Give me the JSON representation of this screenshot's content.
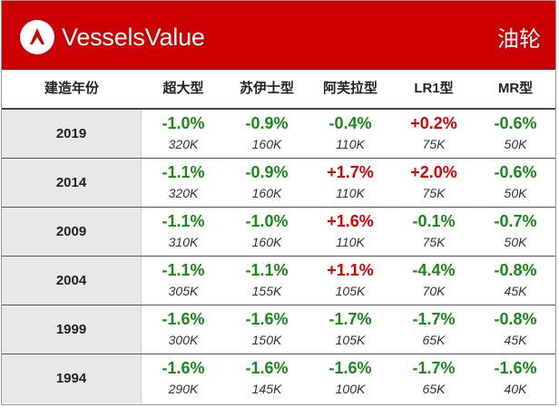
{
  "banner": {
    "brand": "VesselsValue",
    "vessel_type": "油轮",
    "colors": {
      "banner": "#cc0000",
      "decrease": "#1a8a1a",
      "increase": "#e00000"
    },
    "logo_icon": "vesselsvalue-logo-icon"
  },
  "table": {
    "headers": [
      "建造年份",
      "超大型",
      "苏伊士型",
      "阿芙拉型",
      "LR1型",
      "MR型"
    ],
    "rows": [
      {
        "year": "2019",
        "cells": [
          {
            "pct": "-1.0%",
            "price": "320K",
            "dir": "neg"
          },
          {
            "pct": "-0.9%",
            "price": "160K",
            "dir": "neg"
          },
          {
            "pct": "-0.4%",
            "price": "110K",
            "dir": "neg"
          },
          {
            "pct": "+0.2%",
            "price": "75K",
            "dir": "pos"
          },
          {
            "pct": "-0.6%",
            "price": "50K",
            "dir": "neg"
          }
        ]
      },
      {
        "year": "2014",
        "cells": [
          {
            "pct": "-1.1%",
            "price": "320K",
            "dir": "neg"
          },
          {
            "pct": "-0.9%",
            "price": "160K",
            "dir": "neg"
          },
          {
            "pct": "+1.7%",
            "price": "110K",
            "dir": "pos"
          },
          {
            "pct": "+2.0%",
            "price": "75K",
            "dir": "pos"
          },
          {
            "pct": "-0.6%",
            "price": "50K",
            "dir": "neg"
          }
        ]
      },
      {
        "year": "2009",
        "cells": [
          {
            "pct": "-1.1%",
            "price": "310K",
            "dir": "neg"
          },
          {
            "pct": "-1.0%",
            "price": "160K",
            "dir": "neg"
          },
          {
            "pct": "+1.6%",
            "price": "110K",
            "dir": "pos"
          },
          {
            "pct": "-0.1%",
            "price": "75K",
            "dir": "neg"
          },
          {
            "pct": "-0.7%",
            "price": "50K",
            "dir": "neg"
          }
        ]
      },
      {
        "year": "2004",
        "cells": [
          {
            "pct": "-1.1%",
            "price": "305K",
            "dir": "neg"
          },
          {
            "pct": "-1.1%",
            "price": "155K",
            "dir": "neg"
          },
          {
            "pct": "+1.1%",
            "price": "105K",
            "dir": "pos"
          },
          {
            "pct": "-4.4%",
            "price": "70K",
            "dir": "neg"
          },
          {
            "pct": "-0.8%",
            "price": "45K",
            "dir": "neg"
          }
        ]
      },
      {
        "year": "1999",
        "cells": [
          {
            "pct": "-1.6%",
            "price": "300K",
            "dir": "neg"
          },
          {
            "pct": "-1.6%",
            "price": "150K",
            "dir": "neg"
          },
          {
            "pct": "-1.7%",
            "price": "105K",
            "dir": "neg"
          },
          {
            "pct": "-1.7%",
            "price": "65K",
            "dir": "neg"
          },
          {
            "pct": "-0.8%",
            "price": "45K",
            "dir": "neg"
          }
        ]
      },
      {
        "year": "1994",
        "cells": [
          {
            "pct": "-1.6%",
            "price": "290K",
            "dir": "neg"
          },
          {
            "pct": "-1.6%",
            "price": "145K",
            "dir": "neg"
          },
          {
            "pct": "-1.6%",
            "price": "100K",
            "dir": "neg"
          },
          {
            "pct": "-1.7%",
            "price": "65K",
            "dir": "neg"
          },
          {
            "pct": "-1.6%",
            "price": "40K",
            "dir": "neg"
          }
        ]
      }
    ]
  }
}
